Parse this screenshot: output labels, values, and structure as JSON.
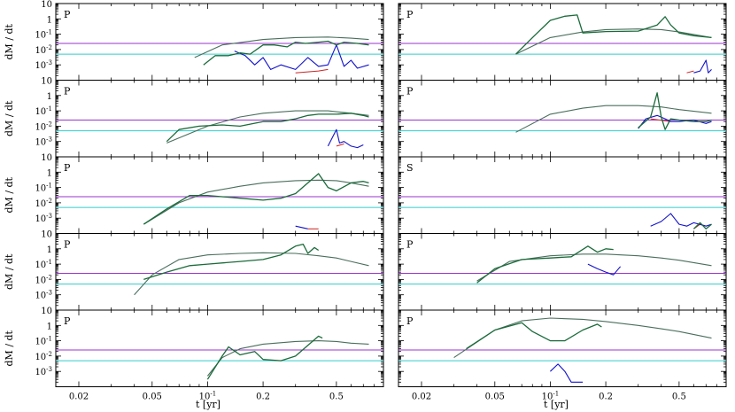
{
  "chart_data": {
    "type": "line",
    "xlabel": "t [yr]",
    "ylabel": "dM / dt",
    "xscale": "log",
    "yscale": "log",
    "xlim": [
      0.015,
      0.9
    ],
    "ylim": [
      0.0001,
      10
    ],
    "x_ticks": [
      {
        "value": 0.02,
        "label": "0.02"
      },
      {
        "value": 0.05,
        "label": "0.05"
      },
      {
        "value": 0.1,
        "label": "10",
        "sup": "-1"
      },
      {
        "value": 0.2,
        "label": "0.2"
      },
      {
        "value": 0.5,
        "label": "0.5"
      }
    ],
    "y_ticks": [
      {
        "value": 10,
        "label": "10",
        "sup": ""
      },
      {
        "value": 1,
        "label": "1",
        "sup": ""
      },
      {
        "value": 0.1,
        "label": "10",
        "sup": "-1"
      },
      {
        "value": 0.01,
        "label": "10",
        "sup": "-2"
      },
      {
        "value": 0.001,
        "label": "10",
        "sup": "-3"
      }
    ],
    "reference_lines": [
      {
        "y": 0.025,
        "color": "#9933cc"
      },
      {
        "y": 0.005,
        "color": "#33cccc"
      }
    ],
    "series_colors": {
      "smooth": "#4a6e5e",
      "noisy": "#1a6b3a",
      "blue": "#1111cc",
      "red": "#cc2222"
    },
    "panels": [
      {
        "tag": "P",
        "row": 0,
        "col": 0,
        "smooth": [
          [
            0.085,
            0.003
          ],
          [
            0.12,
            0.02
          ],
          [
            0.2,
            0.045
          ],
          [
            0.3,
            0.06
          ],
          [
            0.45,
            0.065
          ],
          [
            0.6,
            0.055
          ],
          [
            0.75,
            0.045
          ]
        ],
        "noisy": [
          [
            0.095,
            0.001
          ],
          [
            0.11,
            0.004
          ],
          [
            0.13,
            0.004
          ],
          [
            0.15,
            0.006
          ],
          [
            0.17,
            0.005
          ],
          [
            0.2,
            0.02
          ],
          [
            0.23,
            0.02
          ],
          [
            0.27,
            0.015
          ],
          [
            0.3,
            0.03
          ],
          [
            0.34,
            0.025
          ],
          [
            0.4,
            0.03
          ],
          [
            0.45,
            0.035
          ],
          [
            0.5,
            0.02
          ],
          [
            0.55,
            0.03
          ],
          [
            0.65,
            0.025
          ],
          [
            0.75,
            0.02
          ]
        ],
        "blue": [
          [
            0.14,
            0.008
          ],
          [
            0.16,
            0.004
          ],
          [
            0.18,
            0.001
          ],
          [
            0.2,
            0.003
          ],
          [
            0.22,
            0.0005
          ],
          [
            0.25,
            0.001
          ],
          [
            0.3,
            0.0005
          ],
          [
            0.35,
            0.003
          ],
          [
            0.4,
            0.0008
          ],
          [
            0.45,
            0.001
          ],
          [
            0.5,
            0.02
          ],
          [
            0.55,
            0.0008
          ],
          [
            0.6,
            0.002
          ],
          [
            0.65,
            0.0006
          ],
          [
            0.75,
            0.001
          ]
        ],
        "red": [
          [
            0.3,
            0.0003
          ],
          [
            0.4,
            0.0004
          ],
          [
            0.45,
            0.0005
          ]
        ]
      },
      {
        "tag": "P",
        "row": 0,
        "col": 1,
        "smooth": [
          [
            0.065,
            0.005
          ],
          [
            0.1,
            0.06
          ],
          [
            0.15,
            0.14
          ],
          [
            0.2,
            0.2
          ],
          [
            0.3,
            0.22
          ],
          [
            0.4,
            0.2
          ],
          [
            0.5,
            0.14
          ],
          [
            0.75,
            0.06
          ]
        ],
        "noisy": [
          [
            0.065,
            0.005
          ],
          [
            0.08,
            0.06
          ],
          [
            0.1,
            0.8
          ],
          [
            0.12,
            1.5
          ],
          [
            0.14,
            1.8
          ],
          [
            0.15,
            0.12
          ],
          [
            0.2,
            0.15
          ],
          [
            0.3,
            0.16
          ],
          [
            0.38,
            0.4
          ],
          [
            0.42,
            1.4
          ],
          [
            0.45,
            0.4
          ],
          [
            0.5,
            0.12
          ],
          [
            0.6,
            0.08
          ],
          [
            0.75,
            0.06
          ]
        ],
        "blue": [
          [
            0.6,
            0.0003
          ],
          [
            0.65,
            0.0004
          ],
          [
            0.7,
            0.002
          ],
          [
            0.72,
            0.0003
          ],
          [
            0.75,
            0.0005
          ]
        ],
        "red": [
          [
            0.55,
            0.0003
          ],
          [
            0.6,
            0.0004
          ]
        ]
      },
      {
        "tag": "P",
        "row": 1,
        "col": 0,
        "smooth": [
          [
            0.06,
            0.0008
          ],
          [
            0.1,
            0.01
          ],
          [
            0.15,
            0.04
          ],
          [
            0.2,
            0.07
          ],
          [
            0.3,
            0.1
          ],
          [
            0.45,
            0.1
          ],
          [
            0.6,
            0.07
          ],
          [
            0.75,
            0.05
          ]
        ],
        "noisy": [
          [
            0.06,
            0.001
          ],
          [
            0.07,
            0.006
          ],
          [
            0.09,
            0.01
          ],
          [
            0.12,
            0.012
          ],
          [
            0.15,
            0.01
          ],
          [
            0.2,
            0.02
          ],
          [
            0.25,
            0.02
          ],
          [
            0.3,
            0.03
          ],
          [
            0.35,
            0.05
          ],
          [
            0.4,
            0.06
          ],
          [
            0.5,
            0.06
          ],
          [
            0.6,
            0.07
          ],
          [
            0.7,
            0.05
          ],
          [
            0.75,
            0.04
          ]
        ],
        "blue": [
          [
            0.45,
            0.0005
          ],
          [
            0.5,
            0.006
          ],
          [
            0.52,
            0.0008
          ],
          [
            0.55,
            0.001
          ],
          [
            0.6,
            0.0005
          ],
          [
            0.65,
            0.0004
          ],
          [
            0.7,
            0.0006
          ]
        ],
        "red": [
          [
            0.5,
            0.0005
          ],
          [
            0.55,
            0.0007
          ]
        ]
      },
      {
        "tag": "P",
        "row": 1,
        "col": 1,
        "smooth": [
          [
            0.065,
            0.004
          ],
          [
            0.1,
            0.06
          ],
          [
            0.15,
            0.15
          ],
          [
            0.2,
            0.22
          ],
          [
            0.3,
            0.22
          ],
          [
            0.4,
            0.18
          ],
          [
            0.5,
            0.12
          ],
          [
            0.75,
            0.07
          ]
        ],
        "noisy": [
          [
            0.3,
            0.008
          ],
          [
            0.35,
            0.04
          ],
          [
            0.38,
            1.5
          ],
          [
            0.4,
            0.04
          ],
          [
            0.42,
            0.006
          ],
          [
            0.45,
            0.03
          ],
          [
            0.5,
            0.025
          ],
          [
            0.6,
            0.02
          ],
          [
            0.7,
            0.02
          ],
          [
            0.75,
            0.025
          ]
        ],
        "blue": [
          [
            0.3,
            0.007
          ],
          [
            0.33,
            0.03
          ],
          [
            0.38,
            0.05
          ],
          [
            0.42,
            0.03
          ],
          [
            0.45,
            0.02
          ],
          [
            0.5,
            0.02
          ],
          [
            0.6,
            0.025
          ],
          [
            0.7,
            0.015
          ],
          [
            0.75,
            0.02
          ]
        ],
        "red": [
          [
            0.35,
            0.03
          ],
          [
            0.45,
            0.02
          ]
        ]
      },
      {
        "tag": "P",
        "row": 2,
        "col": 0,
        "smooth": [
          [
            0.045,
            0.0004
          ],
          [
            0.07,
            0.01
          ],
          [
            0.1,
            0.05
          ],
          [
            0.15,
            0.12
          ],
          [
            0.2,
            0.2
          ],
          [
            0.3,
            0.28
          ],
          [
            0.4,
            0.3
          ],
          [
            0.5,
            0.28
          ],
          [
            0.6,
            0.2
          ],
          [
            0.75,
            0.12
          ]
        ],
        "noisy": [
          [
            0.045,
            0.0004
          ],
          [
            0.06,
            0.004
          ],
          [
            0.08,
            0.03
          ],
          [
            0.1,
            0.03
          ],
          [
            0.15,
            0.02
          ],
          [
            0.2,
            0.015
          ],
          [
            0.25,
            0.02
          ],
          [
            0.3,
            0.04
          ],
          [
            0.35,
            0.2
          ],
          [
            0.4,
            0.8
          ],
          [
            0.45,
            0.1
          ],
          [
            0.5,
            0.06
          ],
          [
            0.6,
            0.2
          ],
          [
            0.7,
            0.25
          ],
          [
            0.75,
            0.2
          ]
        ],
        "blue": [
          [
            0.3,
            0.0003
          ],
          [
            0.35,
            0.0002
          ]
        ],
        "red": [
          [
            0.35,
            0.0002
          ],
          [
            0.4,
            0.0002
          ]
        ]
      },
      {
        "tag": "S",
        "row": 2,
        "col": 1,
        "smooth": [],
        "noisy": [
          [
            0.6,
            0.0002
          ],
          [
            0.65,
            0.0005
          ],
          [
            0.7,
            0.0002
          ],
          [
            0.75,
            0.0004
          ]
        ],
        "blue": [
          [
            0.35,
            0.0003
          ],
          [
            0.4,
            0.0006
          ],
          [
            0.45,
            0.002
          ],
          [
            0.5,
            0.0004
          ],
          [
            0.55,
            0.0003
          ],
          [
            0.6,
            0.0005
          ],
          [
            0.7,
            0.0003
          ],
          [
            0.75,
            0.0004
          ]
        ],
        "red": [
          [
            0.6,
            0.0002
          ],
          [
            0.65,
            0.0004
          ],
          [
            0.7,
            0.0003
          ]
        ]
      },
      {
        "tag": "P",
        "row": 3,
        "col": 0,
        "smooth": [
          [
            0.04,
            0.001
          ],
          [
            0.05,
            0.02
          ],
          [
            0.07,
            0.2
          ],
          [
            0.1,
            0.4
          ],
          [
            0.15,
            0.5
          ],
          [
            0.2,
            0.55
          ],
          [
            0.3,
            0.5
          ],
          [
            0.4,
            0.35
          ],
          [
            0.5,
            0.25
          ],
          [
            0.6,
            0.15
          ],
          [
            0.75,
            0.08
          ]
        ],
        "noisy": [
          [
            0.045,
            0.01
          ],
          [
            0.06,
            0.03
          ],
          [
            0.08,
            0.08
          ],
          [
            0.1,
            0.1
          ],
          [
            0.15,
            0.15
          ],
          [
            0.2,
            0.2
          ],
          [
            0.25,
            0.4
          ],
          [
            0.3,
            1.5
          ],
          [
            0.33,
            2
          ],
          [
            0.35,
            0.5
          ],
          [
            0.38,
            1.2
          ],
          [
            0.4,
            0.8
          ]
        ],
        "blue": [],
        "red": []
      },
      {
        "tag": "P",
        "row": 3,
        "col": 1,
        "smooth": [
          [
            0.04,
            0.008
          ],
          [
            0.06,
            0.15
          ],
          [
            0.1,
            0.35
          ],
          [
            0.15,
            0.45
          ],
          [
            0.2,
            0.45
          ],
          [
            0.3,
            0.35
          ],
          [
            0.4,
            0.25
          ],
          [
            0.5,
            0.18
          ],
          [
            0.75,
            0.08
          ]
        ],
        "noisy": [
          [
            0.04,
            0.006
          ],
          [
            0.05,
            0.05
          ],
          [
            0.07,
            0.2
          ],
          [
            0.1,
            0.25
          ],
          [
            0.13,
            0.3
          ],
          [
            0.16,
            1.5
          ],
          [
            0.18,
            0.6
          ],
          [
            0.2,
            1.0
          ],
          [
            0.22,
            0.9
          ]
        ],
        "blue": [
          [
            0.16,
            0.1
          ],
          [
            0.18,
            0.05
          ],
          [
            0.2,
            0.03
          ],
          [
            0.22,
            0.02
          ],
          [
            0.24,
            0.07
          ]
        ],
        "red": []
      },
      {
        "tag": "P",
        "row": 4,
        "col": 0,
        "smooth": [
          [
            0.1,
            0.0005
          ],
          [
            0.12,
            0.008
          ],
          [
            0.15,
            0.03
          ],
          [
            0.2,
            0.06
          ],
          [
            0.3,
            0.09
          ],
          [
            0.4,
            0.1
          ],
          [
            0.5,
            0.09
          ],
          [
            0.6,
            0.07
          ],
          [
            0.75,
            0.06
          ]
        ],
        "noisy": [
          [
            0.1,
            0.0003
          ],
          [
            0.12,
            0.01
          ],
          [
            0.13,
            0.04
          ],
          [
            0.15,
            0.012
          ],
          [
            0.18,
            0.02
          ],
          [
            0.2,
            0.006
          ],
          [
            0.25,
            0.005
          ],
          [
            0.3,
            0.01
          ],
          [
            0.35,
            0.05
          ],
          [
            0.4,
            0.2
          ],
          [
            0.42,
            0.15
          ]
        ],
        "blue": [],
        "red": []
      },
      {
        "tag": "P",
        "row": 4,
        "col": 1,
        "smooth": [
          [
            0.03,
            0.008
          ],
          [
            0.05,
            0.5
          ],
          [
            0.07,
            2
          ],
          [
            0.1,
            3
          ],
          [
            0.15,
            2.5
          ],
          [
            0.2,
            1.8
          ],
          [
            0.3,
            1.0
          ],
          [
            0.4,
            0.6
          ],
          [
            0.5,
            0.4
          ],
          [
            0.75,
            0.15
          ]
        ],
        "noisy": [
          [
            0.035,
            0.03
          ],
          [
            0.05,
            0.5
          ],
          [
            0.07,
            1.5
          ],
          [
            0.08,
            0.4
          ],
          [
            0.1,
            0.1
          ],
          [
            0.12,
            0.1
          ],
          [
            0.15,
            0.5
          ],
          [
            0.18,
            1.2
          ],
          [
            0.19,
            0.8
          ]
        ],
        "blue": [
          [
            0.1,
            0.001
          ],
          [
            0.11,
            0.003
          ],
          [
            0.12,
            0.001
          ],
          [
            0.13,
            0.0002
          ],
          [
            0.15,
            0.0002
          ]
        ],
        "red": []
      }
    ]
  }
}
